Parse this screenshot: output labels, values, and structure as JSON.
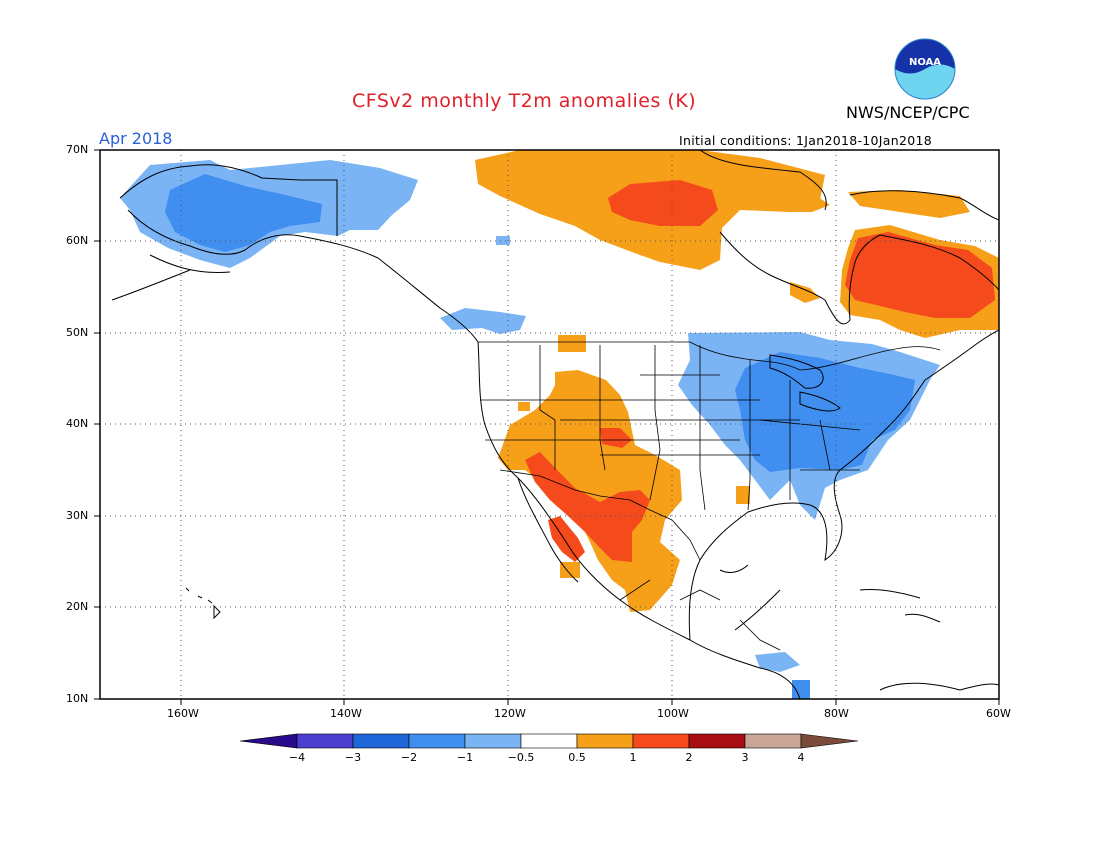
{
  "title": "CFSv2 monthly T2m anomalies (K)",
  "agency": "NWS/NCEP/CPC",
  "logo_text": "NOAA",
  "valid_month": "Apr 2018",
  "initial_conditions": "Initial conditions: 1Jan2018-10Jan2018",
  "lat_labels": [
    "70N",
    "60N",
    "50N",
    "40N",
    "30N",
    "20N",
    "10N"
  ],
  "lon_labels": [
    "160W",
    "140W",
    "120W",
    "100W",
    "80W",
    "60W"
  ],
  "colorbar": {
    "labels": [
      "-4",
      "-3",
      "-2",
      "-1",
      "-0.5",
      "0.5",
      "1",
      "2",
      "3",
      "4"
    ],
    "colors": [
      "#2a0b8c",
      "#4b3fd0",
      "#1f67d8",
      "#3f8ef0",
      "#7ab4f4",
      "#ffffff",
      "#f6a01a",
      "#f54a1b",
      "#a80d12",
      "#c8a596",
      "#7a4a3a"
    ]
  },
  "colors": {
    "title": "#e0202a",
    "month": "#2a5fd8",
    "warm_light": "#f6a01a",
    "warm_strong": "#f54a1b",
    "cool_light": "#7ab4f4",
    "cool_mid": "#3f8ef0"
  }
}
